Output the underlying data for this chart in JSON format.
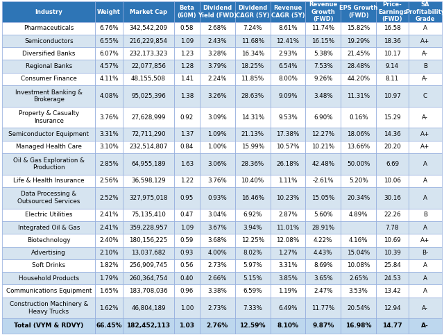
{
  "header": [
    "Industry",
    "Weight",
    "Market Cap",
    "Beta\n(60M)",
    "Dividend\nYield (FWD)",
    "Dividend\nCAGR (5Y)",
    "Revenue\nCAGR (5Y)",
    "Revenue\nGrowth\n(FWD)",
    "EPS Growth\n(FWD)",
    "Price-\nEarnings\n(FWD)",
    "SA\nProfitability\nGrade"
  ],
  "rows": [
    [
      "Pharmaceuticals",
      "6.76%",
      "342,542,209",
      "0.58",
      "2.68%",
      "7.24%",
      "8.61%",
      "11.74%",
      "15.82%",
      "16.58",
      "A"
    ],
    [
      "Semiconductors",
      "6.55%",
      "216,229,854",
      "1.09",
      "2.43%",
      "11.68%",
      "12.41%",
      "16.15%",
      "19.29%",
      "18.36",
      "A+"
    ],
    [
      "Diversified Banks",
      "6.07%",
      "232,173,323",
      "1.23",
      "3.28%",
      "16.34%",
      "2.93%",
      "5.38%",
      "21.45%",
      "10.17",
      "A-"
    ],
    [
      "Regional Banks",
      "4.57%",
      "22,077,856",
      "1.28",
      "3.79%",
      "18.25%",
      "6.54%",
      "7.53%",
      "28.48%",
      "9.14",
      "B"
    ],
    [
      "Consumer Finance",
      "4.11%",
      "48,155,508",
      "1.41",
      "2.24%",
      "11.85%",
      "8.00%",
      "9.26%",
      "44.20%",
      "8.11",
      "A-"
    ],
    [
      "Investment Banking &\nBrokerage",
      "4.08%",
      "95,025,396",
      "1.38",
      "3.26%",
      "28.63%",
      "9.09%",
      "3.48%",
      "11.31%",
      "10.97",
      "C"
    ],
    [
      "Property & Casualty\nInsurance",
      "3.76%",
      "27,628,999",
      "0.92",
      "3.09%",
      "14.31%",
      "9.53%",
      "6.90%",
      "0.16%",
      "15.29",
      "A-"
    ],
    [
      "Semiconductor Equipment",
      "3.31%",
      "72,711,290",
      "1.37",
      "1.09%",
      "21.13%",
      "17.38%",
      "12.27%",
      "18.06%",
      "14.36",
      "A+"
    ],
    [
      "Managed Health Care",
      "3.10%",
      "232,514,807",
      "0.84",
      "1.00%",
      "15.99%",
      "10.57%",
      "10.21%",
      "13.66%",
      "20.20",
      "A+"
    ],
    [
      "Oil & Gas Exploration &\nProduction",
      "2.85%",
      "64,955,189",
      "1.63",
      "3.06%",
      "28.36%",
      "26.18%",
      "42.48%",
      "50.00%",
      "6.69",
      "A"
    ],
    [
      "Life & Health Insurance",
      "2.56%",
      "36,598,129",
      "1.22",
      "3.76%",
      "10.40%",
      "1.11%",
      "-2.61%",
      "5.20%",
      "10.06",
      "A"
    ],
    [
      "Data Processing &\nOutsourced Services",
      "2.52%",
      "327,975,018",
      "0.95",
      "0.93%",
      "16.46%",
      "10.23%",
      "15.05%",
      "20.34%",
      "30.16",
      "A"
    ],
    [
      "Electric Utilities",
      "2.41%",
      "75,135,410",
      "0.47",
      "3.04%",
      "6.92%",
      "2.87%",
      "5.60%",
      "4.89%",
      "22.26",
      "B"
    ],
    [
      "Integrated Oil & Gas",
      "2.41%",
      "359,228,957",
      "1.09",
      "3.67%",
      "3.94%",
      "11.01%",
      "28.91%",
      "",
      "7.78",
      "A"
    ],
    [
      "Biotechnology",
      "2.40%",
      "180,156,225",
      "0.59",
      "3.68%",
      "12.25%",
      "12.08%",
      "4.22%",
      "4.16%",
      "10.69",
      "A+"
    ],
    [
      "Advertising",
      "2.10%",
      "13,037,682",
      "0.93",
      "4.00%",
      "8.02%",
      "1.27%",
      "4.43%",
      "15.04%",
      "10.39",
      "B-"
    ],
    [
      "Soft Drinks",
      "1.82%",
      "256,909,745",
      "0.56",
      "2.73%",
      "5.97%",
      "3.31%",
      "8.69%",
      "10.08%",
      "25.84",
      "A"
    ],
    [
      "Household Products",
      "1.79%",
      "260,364,754",
      "0.40",
      "2.66%",
      "5.15%",
      "3.85%",
      "3.65%",
      "2.65%",
      "24.53",
      "A"
    ],
    [
      "Communications Equipment",
      "1.65%",
      "183,708,036",
      "0.96",
      "3.38%",
      "6.59%",
      "1.19%",
      "2.47%",
      "3.53%",
      "13.42",
      "A"
    ],
    [
      "Construction Machinery &\nHeavy Trucks",
      "1.62%",
      "46,804,189",
      "1.00",
      "2.73%",
      "7.33%",
      "6.49%",
      "11.77%",
      "20.54%",
      "12.94",
      "A-"
    ],
    [
      "Total (VYM & RDVY)",
      "66.45%",
      "182,452,113",
      "1.03",
      "2.76%",
      "12.59%",
      "8.10%",
      "9.87%",
      "16.98%",
      "14.77",
      "A-"
    ]
  ],
  "row_is_double": [
    false,
    false,
    false,
    false,
    false,
    true,
    true,
    false,
    false,
    true,
    false,
    true,
    false,
    false,
    false,
    false,
    false,
    false,
    false,
    true,
    false
  ],
  "header_bg": "#2E75B6",
  "header_fg": "#FFFFFF",
  "row_bg_odd": "#FFFFFF",
  "row_bg_even": "#D6E4F0",
  "total_bg": "#BDD7EE",
  "border_color": "#8FAADC",
  "col_widths": [
    1.9,
    0.56,
    1.05,
    0.52,
    0.72,
    0.72,
    0.72,
    0.72,
    0.72,
    0.66,
    0.68
  ]
}
